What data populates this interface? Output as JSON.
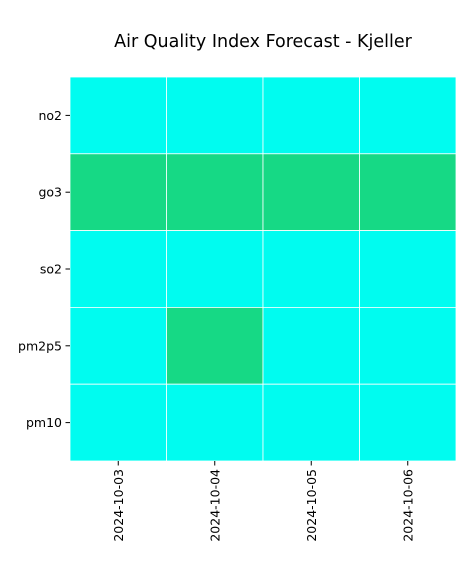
{
  "chart_data": {
    "type": "heatmap",
    "title": "Air Quality Index Forecast - Kjeller",
    "xlabel": "",
    "ylabel": "",
    "x": [
      "2024-10-03",
      "2024-10-04",
      "2024-10-05",
      "2024-10-06"
    ],
    "y": [
      "no2",
      "go3",
      "so2",
      "pm2p5",
      "pm10"
    ],
    "values": [
      [
        1,
        1,
        1,
        1
      ],
      [
        2,
        2,
        2,
        2
      ],
      [
        1,
        1,
        1,
        1
      ],
      [
        1,
        2,
        1,
        1
      ],
      [
        1,
        1,
        1,
        1
      ]
    ],
    "colors": {
      "1": "#00fcf0",
      "2": "#16d985"
    },
    "grid": false,
    "legend": "none"
  }
}
